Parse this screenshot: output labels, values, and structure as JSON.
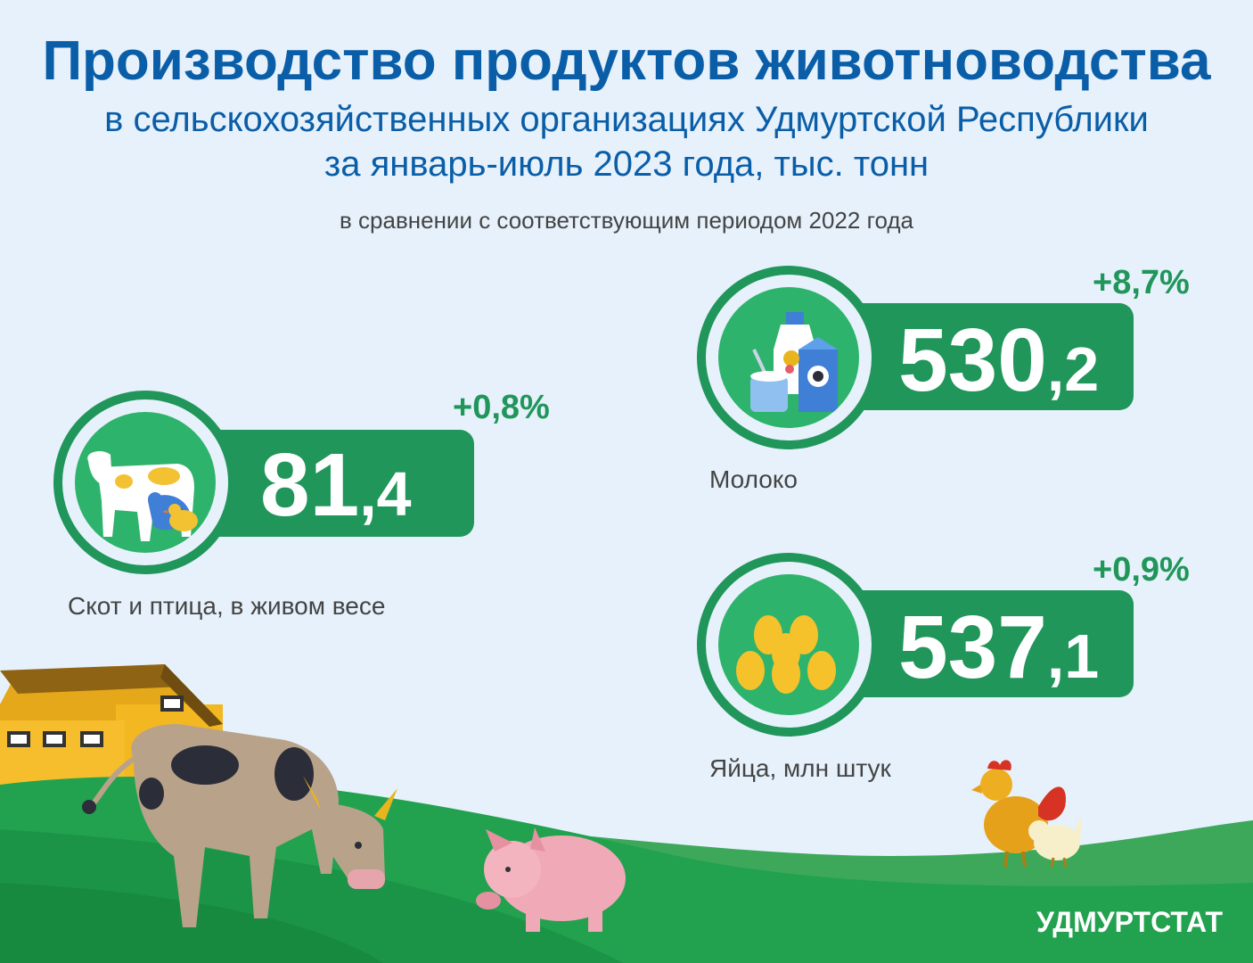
{
  "title": "Производство продуктов животноводства",
  "subtitle_line1": "в сельскохозяйственных организациях Удмуртской Республики",
  "subtitle_line2": "за январь-июль 2023 года, тыс. тонн",
  "comparison": "в сравнении с соответствующим периодом 2022 года",
  "stats": {
    "livestock": {
      "int": "81",
      "dec": ",4",
      "change": "+0,8%",
      "label": "Скот и птица, в живом весе",
      "icon": "cow-chicken-icon"
    },
    "milk": {
      "int": "530",
      "dec": ",2",
      "change": "+8,7%",
      "label": "Молоко",
      "icon": "milk-products-icon"
    },
    "eggs": {
      "int": "537",
      "dec": ",1",
      "change": "+0,9%",
      "label": "Яйца, млн штук",
      "icon": "eggs-icon"
    }
  },
  "brand": "УДМУРТСТАТ",
  "colors": {
    "accent": "#20965a",
    "title": "#0a5ea8",
    "background": "#e6f1fb",
    "field": "#1fa152",
    "egg": "#f6c22c"
  }
}
